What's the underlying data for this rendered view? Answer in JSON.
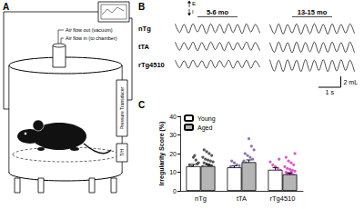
{
  "panel_a": {
    "label": "A",
    "air_flow_out": "Air flow out (vacuum)",
    "air_flow_in": "Air flow in (to chamber)",
    "transducer": "Pressure Transducer",
    "th": "T/H"
  },
  "panel_b": {
    "label": "B",
    "columns": [
      "5-6 mo",
      "13-15 mo"
    ],
    "rows": [
      "nTg",
      "tTA",
      "rTg4510"
    ],
    "expiration": "E",
    "inspiration": "I",
    "x": [
      0.1,
      0.3,
      0.5,
      0.7,
      0.9,
      1.1,
      1.3,
      1.5,
      1.7,
      1.9,
      2.1,
      2.3,
      2.5,
      2.7,
      2.9,
      3.1,
      3.3,
      3.5,
      3.7,
      3.9
    ],
    "xlim": [
      0,
      4
    ],
    "ylim": [
      -2,
      1
    ],
    "traces": [
      [
        [
          0.3,
          -1.3,
          0.2,
          -1.4,
          0.3,
          -1.2,
          0.2,
          -1.5,
          0.3,
          -1.3,
          0.2,
          -1.4,
          0.3,
          -1.3,
          0.2,
          -1.5,
          0.3,
          -1.2,
          0.2,
          -1.4
        ],
        [
          0.2,
          -1.5,
          0.3,
          -1.6,
          0.2,
          -1.4,
          0.3,
          -1.6,
          0.2,
          -1.5,
          0.3,
          -1.4,
          0.2,
          -1.6,
          0.3,
          -1.5,
          0.2,
          -1.4,
          0.3,
          -1.5
        ]
      ],
      [
        [
          0.3,
          -1.2,
          0.2,
          -1.1,
          0.3,
          -1.3,
          0.2,
          -1.2,
          0.3,
          -1.1,
          0.2,
          -1.3,
          0.3,
          -1.2,
          0.2,
          -1.1,
          0.3,
          -1.2,
          0.2,
          -1.3
        ],
        [
          0.2,
          -1.6,
          0.3,
          -1.5,
          0.2,
          -1.7,
          0.3,
          -1.6,
          0.2,
          -1.5,
          0.3,
          -1.7,
          0.2,
          -1.6,
          0.3,
          -1.5,
          0.2,
          -1.6,
          0.3,
          -1.7
        ]
      ],
      [
        [
          0.3,
          -1.1,
          0.2,
          -1.2,
          0.3,
          -1.0,
          0.2,
          -1.2,
          0.3,
          -1.1,
          0.2,
          -1.0,
          0.3,
          -1.2,
          0.2,
          -1.1,
          0.3,
          -1.2,
          0.2,
          -1.0
        ],
        [
          0.4,
          -1.7,
          0.3,
          -1.8,
          0.4,
          -1.6,
          0.3,
          -1.8,
          0.4,
          -1.7,
          0.3,
          -1.6,
          0.4,
          -1.8,
          0.3,
          -1.7,
          0.4,
          -1.6,
          0.3,
          -1.8
        ]
      ]
    ],
    "scale_y": {
      "value": 2,
      "label": "2 mL"
    },
    "scale_x": {
      "value": 1,
      "label": "1 s"
    }
  },
  "chart_data": {
    "type": "bar",
    "panel": "C",
    "y_label": "Irregularity Score (%)",
    "categories": [
      "nTg",
      "tTA",
      "rTg4510"
    ],
    "ylim": [
      0,
      40
    ],
    "yticks": [
      0,
      10,
      20,
      30,
      40
    ],
    "colors": [
      "#3a3a3a",
      "#7b5aa6",
      "#d63cc4"
    ],
    "legend": "upper left",
    "grid": false,
    "series": [
      {
        "name": "Young",
        "color": "#ffffff",
        "values": [
          13.2,
          12.6,
          11.3
        ],
        "errors": [
          1.0,
          0.8,
          1.2
        ],
        "points": [
          [
            9.5,
            11,
            12,
            13,
            14,
            15,
            16.5,
            18,
            12.5,
            10.5,
            14.5,
            19
          ],
          [
            9,
            10.5,
            11.5,
            12,
            13,
            13.5,
            14,
            15,
            16
          ],
          [
            5,
            6.5,
            8,
            9,
            10,
            11,
            12,
            13,
            14,
            15.5,
            17
          ]
        ]
      },
      {
        "name": "Aged",
        "color": "#b5b5b5",
        "values": [
          13.3,
          15.4,
          8.9
        ],
        "errors": [
          0.8,
          1.2,
          0.7
        ],
        "points": [
          [
            7,
            8,
            9,
            10,
            10.5,
            11,
            11.5,
            12,
            12.5,
            13,
            13.5,
            14,
            14.5,
            15,
            15.5,
            16,
            16.5,
            17,
            18,
            19,
            20,
            21,
            22,
            12,
            13
          ],
          [
            9,
            10,
            11,
            12,
            13,
            13.5,
            14,
            14.5,
            15,
            16,
            17,
            18,
            19,
            20,
            22,
            24,
            28
          ],
          [
            3,
            4,
            4.5,
            5,
            5.5,
            6,
            6.5,
            7,
            7.5,
            8,
            8.5,
            9,
            9.5,
            10,
            10.5,
            11,
            11.5,
            12,
            13,
            14,
            15,
            16,
            18,
            20,
            5,
            7,
            9,
            6,
            8,
            10
          ]
        ]
      }
    ]
  }
}
